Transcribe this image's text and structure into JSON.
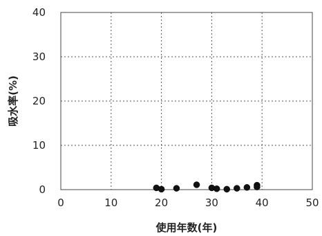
{
  "chart_data": {
    "type": "scatter",
    "xlabel": "使用年数(年)",
    "ylabel": "吸水率(%)",
    "xlim": [
      0,
      50
    ],
    "ylim": [
      0,
      40
    ],
    "xticks": [
      0,
      10,
      20,
      30,
      40,
      50
    ],
    "yticks": [
      0,
      10,
      20,
      30,
      40
    ],
    "x_tick_labels": [
      "0",
      "10",
      "20",
      "30",
      "40",
      "50"
    ],
    "y_tick_labels": [
      "0",
      "10",
      "20",
      "30",
      "40"
    ],
    "grid": true,
    "grid_style": "dotted",
    "marker_color": "#111111",
    "points": [
      {
        "x": 19,
        "y": 0.4
      },
      {
        "x": 20,
        "y": 0.1
      },
      {
        "x": 23,
        "y": 0.3
      },
      {
        "x": 27,
        "y": 1.1
      },
      {
        "x": 30,
        "y": 0.4
      },
      {
        "x": 31,
        "y": 0.2
      },
      {
        "x": 33,
        "y": 0.1
      },
      {
        "x": 35,
        "y": 0.3
      },
      {
        "x": 37,
        "y": 0.5
      },
      {
        "x": 39,
        "y": 1.0
      },
      {
        "x": 39,
        "y": 0.6
      }
    ]
  }
}
